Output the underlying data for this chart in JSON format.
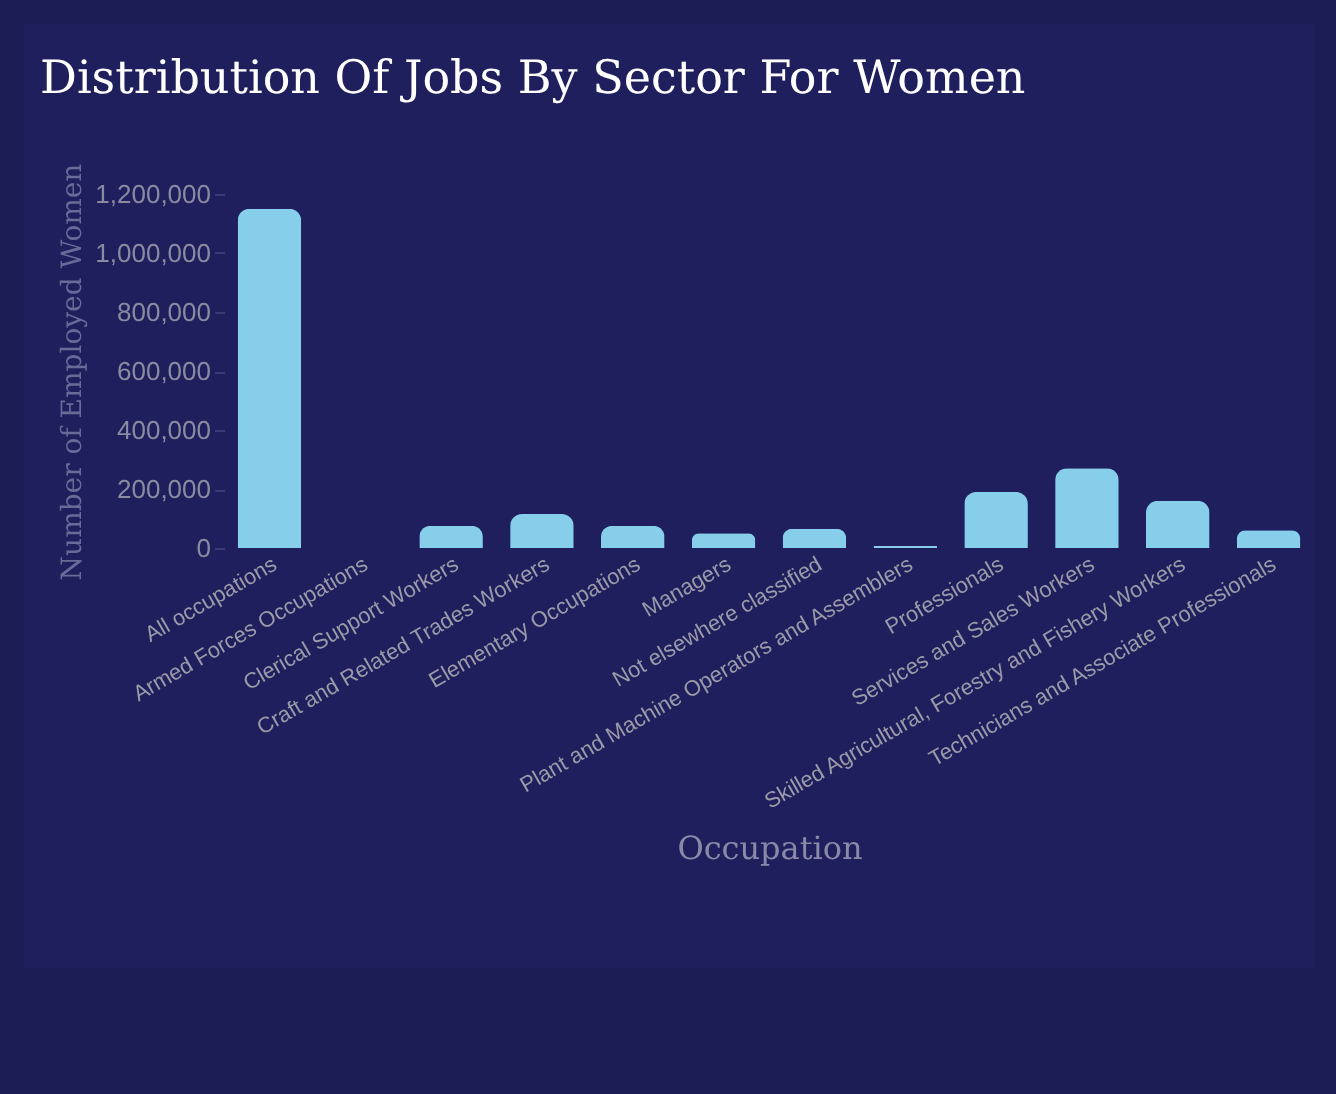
{
  "chart_data": {
    "type": "bar",
    "title": "Distribution Of Jobs By Sector For Women",
    "xlabel": "Occupation",
    "ylabel": "Number of Employed Women",
    "categories": [
      "All occupations",
      "Armed Forces Occupations",
      "Clerical Support Workers",
      "Craft and Related Trades Workers",
      "Elementary Occupations",
      "Managers",
      "Not elsewhere classified",
      "Plant and Machine Operators and Assemblers",
      "Professionals",
      "Services and Sales Workers",
      "Skilled Agricultural, Forestry and Fishery Workers",
      "Technicians and Associate Professionals"
    ],
    "values": [
      1150000,
      0,
      75000,
      115000,
      75000,
      50000,
      65000,
      7000,
      190000,
      270000,
      160000,
      60000
    ],
    "color": "#87ceeb",
    "ylim": [
      0,
      1200000
    ],
    "yticks": [
      0,
      {
        "value": 200000,
        "label": "200,000"
      },
      {
        "value": 400000,
        "label": "400,000"
      },
      {
        "value": 600000,
        "label": "600,000"
      },
      {
        "value": 800000,
        "label": "800,000"
      },
      {
        "value": 1000000,
        "label": "1,000,000"
      },
      {
        "value": 1200000,
        "label": "1,200,000"
      }
    ],
    "grid": false
  }
}
